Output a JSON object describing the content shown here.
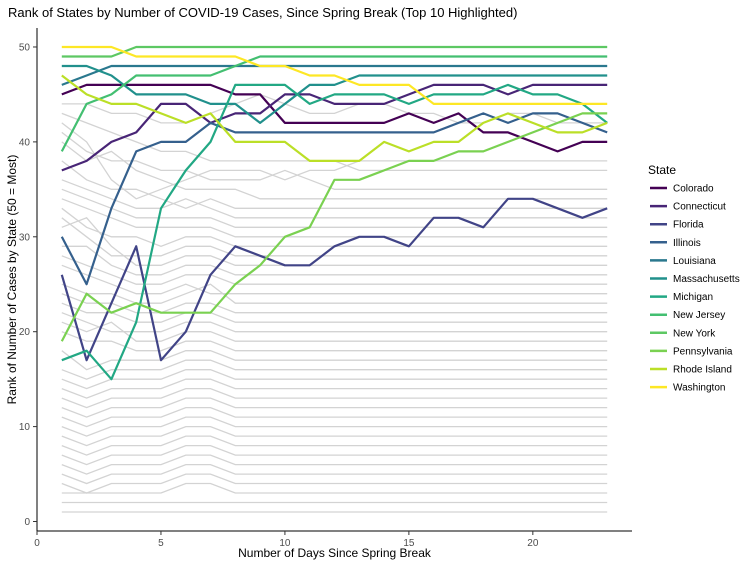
{
  "chart_data": {
    "type": "line",
    "title": "Rank of States by Number of COVID-19 Cases, Since Spring Break (Top 10 Highlighted)",
    "xlabel": "Number of Days Since Spring Break",
    "ylabel": "Rank of Number of Cases by State (50 = Most)",
    "xlim": [
      0,
      24
    ],
    "ylim": [
      -1,
      52
    ],
    "xticks": [
      0,
      5,
      10,
      15,
      20
    ],
    "yticks": [
      0,
      10,
      20,
      30,
      40,
      50
    ],
    "grid": false,
    "legend": {
      "title": "State",
      "placement": "right"
    },
    "x": [
      1,
      2,
      3,
      4,
      5,
      6,
      7,
      8,
      9,
      10,
      11,
      12,
      13,
      14,
      15,
      16,
      17,
      18,
      19,
      20,
      21,
      22,
      23
    ],
    "background_color": "#d3d3d3",
    "background_series": [
      [
        44,
        44,
        43,
        43,
        42,
        42,
        43,
        44,
        45,
        44,
        43,
        43,
        44,
        44,
        43,
        43,
        42,
        42,
        43,
        43,
        42,
        42,
        42
      ],
      [
        43,
        42,
        41,
        40,
        39,
        39,
        38,
        38,
        38,
        38,
        38,
        38,
        37,
        37,
        37,
        37,
        37,
        37,
        37,
        37,
        37,
        37,
        37
      ],
      [
        42,
        40,
        36,
        34,
        35,
        36,
        37,
        37,
        37,
        36,
        37,
        37,
        38,
        38,
        38,
        38,
        38,
        38,
        38,
        38,
        38,
        38,
        38
      ],
      [
        41,
        39,
        38,
        38,
        37,
        37,
        36,
        36,
        36,
        37,
        36,
        35,
        35,
        35,
        35,
        35,
        35,
        35,
        35,
        35,
        35,
        35,
        35
      ],
      [
        40,
        38,
        39,
        37,
        36,
        35,
        35,
        35,
        34,
        34,
        34,
        34,
        34,
        34,
        34,
        34,
        34,
        34,
        34,
        34,
        34,
        34,
        34
      ],
      [
        38,
        36,
        35,
        35,
        34,
        33,
        34,
        33,
        33,
        33,
        33,
        33,
        33,
        33,
        33,
        33,
        33,
        33,
        33,
        33,
        33,
        33,
        33
      ],
      [
        36,
        35,
        34,
        33,
        33,
        34,
        33,
        32,
        32,
        32,
        32,
        32,
        32,
        32,
        32,
        32,
        32,
        32,
        32,
        32,
        32,
        32,
        32
      ],
      [
        35,
        34,
        33,
        32,
        32,
        32,
        32,
        31,
        31,
        31,
        31,
        31,
        31,
        31,
        31,
        31,
        31,
        31,
        31,
        31,
        31,
        31,
        31
      ],
      [
        34,
        33,
        32,
        31,
        31,
        31,
        31,
        30,
        30,
        30,
        30,
        30,
        30,
        30,
        30,
        30,
        30,
        30,
        30,
        30,
        30,
        30,
        30
      ],
      [
        33,
        31,
        30,
        30,
        29,
        30,
        30,
        29,
        29,
        29,
        29,
        29,
        29,
        29,
        29,
        29,
        29,
        29,
        29,
        29,
        29,
        29,
        29
      ],
      [
        32,
        30,
        28,
        28,
        28,
        29,
        29,
        28,
        28,
        28,
        28,
        28,
        28,
        28,
        28,
        28,
        28,
        28,
        28,
        28,
        28,
        28,
        28
      ],
      [
        31,
        32,
        29,
        27,
        27,
        28,
        28,
        27,
        27,
        27,
        27,
        27,
        27,
        27,
        27,
        27,
        27,
        27,
        27,
        27,
        27,
        27,
        27
      ],
      [
        29,
        29,
        27,
        26,
        26,
        27,
        27,
        26,
        26,
        26,
        26,
        26,
        26,
        26,
        26,
        26,
        26,
        26,
        26,
        26,
        26,
        26,
        26
      ],
      [
        28,
        27,
        26,
        25,
        25,
        26,
        26,
        25,
        25,
        25,
        25,
        25,
        25,
        25,
        25,
        25,
        25,
        25,
        25,
        25,
        25,
        25,
        25
      ],
      [
        27,
        26,
        25,
        24,
        24,
        25,
        24,
        24,
        24,
        24,
        24,
        24,
        24,
        24,
        24,
        24,
        24,
        24,
        24,
        24,
        24,
        24,
        24
      ],
      [
        25,
        24,
        24,
        23,
        23,
        24,
        25,
        23,
        23,
        23,
        23,
        23,
        23,
        23,
        23,
        23,
        23,
        23,
        23,
        23,
        23,
        23,
        23
      ],
      [
        24,
        23,
        23,
        22,
        22,
        23,
        23,
        22,
        22,
        22,
        22,
        22,
        22,
        22,
        22,
        22,
        22,
        22,
        22,
        22,
        22,
        22,
        22
      ],
      [
        23,
        22,
        22,
        21,
        21,
        22,
        22,
        21,
        21,
        21,
        21,
        21,
        21,
        21,
        21,
        21,
        21,
        21,
        21,
        21,
        21,
        21,
        21
      ],
      [
        22,
        21,
        20,
        20,
        20,
        21,
        21,
        20,
        20,
        20,
        20,
        20,
        20,
        20,
        20,
        20,
        20,
        20,
        20,
        20,
        20,
        20,
        20
      ],
      [
        21,
        20,
        21,
        19,
        19,
        20,
        20,
        19,
        19,
        19,
        19,
        19,
        19,
        19,
        19,
        19,
        19,
        19,
        19,
        19,
        19,
        19,
        19
      ],
      [
        20,
        19,
        19,
        18,
        18,
        19,
        19,
        18,
        18,
        18,
        18,
        18,
        18,
        18,
        18,
        18,
        18,
        18,
        18,
        18,
        18,
        18,
        18
      ],
      [
        18,
        16,
        17,
        17,
        17,
        18,
        18,
        17,
        17,
        17,
        17,
        17,
        17,
        17,
        17,
        17,
        17,
        17,
        17,
        17,
        17,
        17,
        17
      ],
      [
        16,
        15,
        16,
        16,
        16,
        17,
        17,
        16,
        16,
        16,
        16,
        16,
        16,
        16,
        16,
        16,
        16,
        16,
        16,
        16,
        16,
        16,
        16
      ],
      [
        15,
        14,
        15,
        15,
        15,
        16,
        16,
        15,
        15,
        15,
        15,
        15,
        15,
        15,
        15,
        15,
        15,
        15,
        15,
        15,
        15,
        15,
        15
      ],
      [
        14,
        13,
        14,
        14,
        14,
        15,
        15,
        14,
        14,
        14,
        14,
        14,
        14,
        14,
        14,
        14,
        14,
        14,
        14,
        14,
        14,
        14,
        14
      ],
      [
        13,
        12,
        13,
        13,
        13,
        14,
        14,
        13,
        13,
        13,
        13,
        13,
        13,
        13,
        13,
        13,
        13,
        13,
        13,
        13,
        13,
        13,
        13
      ],
      [
        12,
        11,
        12,
        12,
        12,
        13,
        13,
        12,
        12,
        12,
        12,
        12,
        12,
        12,
        12,
        12,
        12,
        12,
        12,
        12,
        12,
        12,
        12
      ],
      [
        11,
        10,
        11,
        11,
        11,
        12,
        12,
        11,
        11,
        11,
        11,
        11,
        11,
        11,
        11,
        11,
        11,
        11,
        11,
        11,
        11,
        11,
        11
      ],
      [
        10,
        9,
        10,
        10,
        10,
        11,
        11,
        10,
        10,
        10,
        10,
        10,
        10,
        10,
        10,
        10,
        10,
        10,
        10,
        10,
        10,
        10,
        10
      ],
      [
        9,
        8,
        9,
        9,
        9,
        10,
        10,
        9,
        9,
        9,
        9,
        9,
        9,
        9,
        9,
        9,
        9,
        9,
        9,
        9,
        9,
        9,
        9
      ],
      [
        8,
        7,
        8,
        8,
        8,
        9,
        9,
        8,
        8,
        8,
        8,
        8,
        8,
        8,
        8,
        8,
        8,
        8,
        8,
        8,
        8,
        8,
        8
      ],
      [
        7,
        6,
        7,
        7,
        7,
        8,
        8,
        7,
        7,
        7,
        7,
        7,
        7,
        7,
        7,
        7,
        7,
        7,
        7,
        7,
        7,
        7,
        7
      ],
      [
        6,
        5,
        6,
        6,
        6,
        7,
        7,
        6,
        6,
        6,
        6,
        6,
        6,
        6,
        6,
        6,
        6,
        6,
        6,
        6,
        6,
        6,
        6
      ],
      [
        5,
        4,
        5,
        5,
        5,
        6,
        6,
        5,
        5,
        5,
        5,
        5,
        5,
        5,
        5,
        5,
        5,
        5,
        5,
        5,
        5,
        5,
        5
      ],
      [
        4,
        3,
        4,
        4,
        4,
        5,
        5,
        4,
        4,
        4,
        4,
        4,
        4,
        4,
        4,
        4,
        4,
        4,
        4,
        4,
        4,
        4,
        4
      ],
      [
        3,
        3,
        3,
        3,
        3,
        4,
        4,
        3,
        3,
        3,
        3,
        3,
        3,
        3,
        3,
        3,
        3,
        3,
        3,
        3,
        3,
        3,
        3
      ],
      [
        2,
        2,
        2,
        2,
        2,
        2,
        2,
        2,
        2,
        2,
        2,
        2,
        2,
        2,
        2,
        2,
        2,
        2,
        2,
        2,
        2,
        2,
        2
      ],
      [
        1,
        1,
        1,
        1,
        1,
        1,
        1,
        1,
        1,
        1,
        1,
        1,
        1,
        1,
        1,
        1,
        1,
        1,
        1,
        1,
        1,
        1,
        1
      ]
    ],
    "series": [
      {
        "name": "Colorado",
        "color": "#440154",
        "values": [
          45,
          46,
          46,
          46,
          46,
          46,
          46,
          45,
          45,
          42,
          42,
          42,
          42,
          42,
          43,
          42,
          43,
          41,
          41,
          40,
          39,
          40,
          40
        ]
      },
      {
        "name": "Connecticut",
        "color": "#482576",
        "values": [
          37,
          38,
          40,
          41,
          44,
          44,
          42,
          43,
          43,
          45,
          45,
          44,
          44,
          44,
          45,
          46,
          46,
          46,
          45,
          46,
          46,
          46,
          46
        ]
      },
      {
        "name": "Florida",
        "color": "#414487",
        "values": [
          26,
          17,
          23,
          29,
          17,
          20,
          26,
          29,
          28,
          27,
          27,
          29,
          30,
          30,
          29,
          32,
          32,
          31,
          34,
          34,
          33,
          32,
          33
        ]
      },
      {
        "name": "Illinois",
        "color": "#35608D",
        "values": [
          30,
          25,
          33,
          39,
          40,
          40,
          42,
          41,
          41,
          41,
          41,
          41,
          41,
          41,
          41,
          41,
          42,
          43,
          42,
          43,
          43,
          42,
          41
        ]
      },
      {
        "name": "Louisiana",
        "color": "#2A788E",
        "values": [
          46,
          47,
          48,
          48,
          48,
          48,
          48,
          48,
          48,
          48,
          48,
          48,
          48,
          48,
          48,
          48,
          48,
          48,
          48,
          48,
          48,
          48,
          48
        ]
      },
      {
        "name": "Massachusetts",
        "color": "#21908C",
        "values": [
          48,
          48,
          47,
          45,
          45,
          45,
          44,
          44,
          42,
          44,
          46,
          46,
          47,
          47,
          47,
          47,
          47,
          47,
          47,
          47,
          47,
          47,
          47
        ]
      },
      {
        "name": "Michigan",
        "color": "#22A884",
        "values": [
          17,
          18,
          15,
          21,
          33,
          37,
          40,
          46,
          46,
          46,
          44,
          45,
          45,
          45,
          44,
          45,
          45,
          45,
          46,
          45,
          45,
          44,
          42
        ]
      },
      {
        "name": "New Jersey",
        "color": "#43BF71",
        "values": [
          39,
          44,
          45,
          47,
          47,
          47,
          47,
          48,
          49,
          49,
          49,
          49,
          49,
          49,
          49,
          49,
          49,
          49,
          49,
          49,
          49,
          49,
          49
        ]
      },
      {
        "name": "New York",
        "color": "#5DC863",
        "values": [
          49,
          49,
          49,
          50,
          50,
          50,
          50,
          50,
          50,
          50,
          50,
          50,
          50,
          50,
          50,
          50,
          50,
          50,
          50,
          50,
          50,
          50,
          50
        ]
      },
      {
        "name": "Pennsylvania",
        "color": "#7AD151",
        "values": [
          19,
          24,
          22,
          23,
          22,
          22,
          22,
          25,
          27,
          30,
          31,
          36,
          36,
          37,
          38,
          38,
          39,
          39,
          40,
          41,
          42,
          43,
          43
        ]
      },
      {
        "name": "Rhode Island",
        "color": "#BBDF27",
        "values": [
          47,
          45,
          44,
          44,
          43,
          42,
          43,
          40,
          40,
          40,
          38,
          38,
          38,
          40,
          39,
          40,
          40,
          42,
          43,
          42,
          41,
          41,
          42
        ]
      },
      {
        "name": "Washington",
        "color": "#FDE725",
        "values": [
          50,
          50,
          50,
          49,
          49,
          49,
          49,
          49,
          48,
          48,
          47,
          47,
          46,
          46,
          46,
          44,
          44,
          44,
          44,
          44,
          44,
          44,
          44
        ]
      }
    ]
  }
}
